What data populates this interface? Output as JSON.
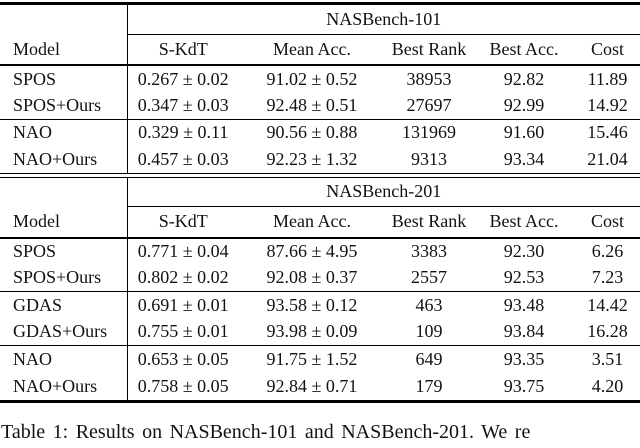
{
  "caption": "Table 1: Results on NASBench-101 and NASBench-201. We re",
  "colors": {
    "text": "#121212",
    "rule": "#000000",
    "background": "#ffffff"
  },
  "tables": [
    {
      "benchmark": "NASBench-101",
      "columns": [
        "Model",
        "S-KdT",
        "Mean Acc.",
        "Best Rank",
        "Best Acc.",
        "Cost"
      ],
      "row_groups": [
        [
          [
            "SPOS",
            "0.267 ± 0.02",
            "91.02 ± 0.52",
            "38953",
            "92.82",
            "11.89"
          ],
          [
            "SPOS+Ours",
            "0.347 ± 0.03",
            "92.48 ± 0.51",
            "27697",
            "92.99",
            "14.92"
          ]
        ],
        [
          [
            "NAO",
            "0.329 ± 0.11",
            "90.56 ± 0.88",
            "131969",
            "91.60",
            "15.46"
          ],
          [
            "NAO+Ours",
            "0.457 ± 0.03",
            "92.23 ± 1.32",
            "9313",
            "93.34",
            "21.04"
          ]
        ]
      ]
    },
    {
      "benchmark": "NASBench-201",
      "columns": [
        "Model",
        "S-KdT",
        "Mean Acc.",
        "Best Rank",
        "Best Acc.",
        "Cost"
      ],
      "row_groups": [
        [
          [
            "SPOS",
            "0.771 ± 0.04",
            "87.66 ± 4.95",
            "3383",
            "92.30",
            "6.26"
          ],
          [
            "SPOS+Ours",
            "0.802 ± 0.02",
            "92.08 ± 0.37",
            "2557",
            "92.53",
            "7.23"
          ]
        ],
        [
          [
            "GDAS",
            "0.691 ± 0.01",
            "93.58 ± 0.12",
            "463",
            "93.48",
            "14.42"
          ],
          [
            "GDAS+Ours",
            "0.755 ± 0.01",
            "93.98 ± 0.09",
            "109",
            "93.84",
            "16.28"
          ]
        ],
        [
          [
            "NAO",
            "0.653 ± 0.05",
            "91.75 ± 1.52",
            "649",
            "93.35",
            "3.51"
          ],
          [
            "NAO+Ours",
            "0.758 ± 0.05",
            "92.84 ± 0.71",
            "179",
            "93.75",
            "4.20"
          ]
        ]
      ]
    }
  ]
}
